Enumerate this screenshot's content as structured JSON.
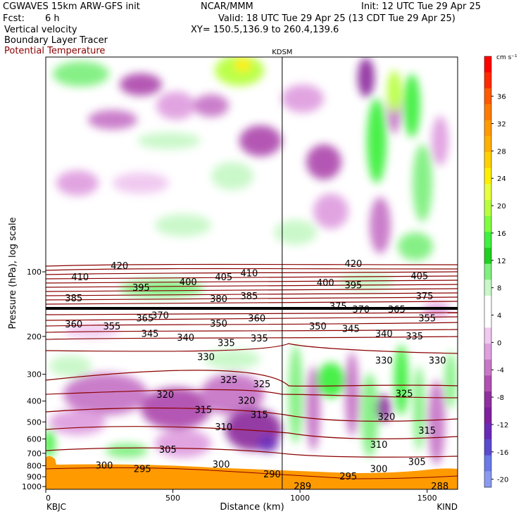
{
  "header": {
    "model": "CGWAVES 15km ARW-GFS init",
    "org": "NCAR/MMM",
    "init": "Init: 12 UTC Tue 29 Apr 25",
    "fcst_label": "Fcst:",
    "fcst_value": "6 h",
    "valid": "Valid: 18 UTC Tue 29 Apr 25 (13 CDT Tue 29 Apr 25)",
    "field1": "Vertical velocity",
    "xy": "XY= 150.5,136.9 to 260.4,139.6",
    "field2": "Boundary Layer Tracer",
    "field3": "Potential Temperature",
    "field3_color": "#8b0000"
  },
  "chart_data": {
    "type": "heatmap",
    "ylabel": "Pressure (hPa), log scale",
    "xlabel": "Distance (km)",
    "y_log": true,
    "ylim": [
      1000,
      10
    ],
    "xlim": [
      0,
      1620
    ],
    "x_ticks": [
      0,
      500,
      1000,
      1500
    ],
    "x_tick_labels": [
      "0",
      "500",
      "1000",
      "1500"
    ],
    "y_ticks": [
      100,
      200,
      300,
      400,
      500,
      600,
      700,
      800,
      900,
      1000
    ],
    "y_tick_labels": [
      "100",
      "200",
      "300",
      "400",
      "500",
      "600",
      "700",
      "800",
      "900",
      "1000"
    ],
    "left_station": "KBJC",
    "right_station": "KIND",
    "mid_station": "KDSM",
    "mid_station_x": 930,
    "colorbar": {
      "unit": "cm s⁻¹",
      "tick_labels": [
        "36",
        "32",
        "28",
        "24",
        "20",
        "16",
        "12",
        "8",
        "4",
        "0",
        "-4",
        "-8",
        "-12",
        "-16",
        "-20"
      ],
      "colors": [
        "#ff0000",
        "#ff2a00",
        "#ff5a00",
        "#ff7a00",
        "#ff9a00",
        "#ffb000",
        "#ffd000",
        "#ffee00",
        "#e8ff40",
        "#b8ff40",
        "#80ff40",
        "#40f040",
        "#20d020",
        "#80f080",
        "#c8f8c8",
        "#ffffff",
        "#ffffff",
        "#f0c8f0",
        "#e0a0e0",
        "#c878c8",
        "#b050b0",
        "#9030a0",
        "#8020a0",
        "#6a2ab8",
        "#5a4ad0",
        "#6a7ae8",
        "#8a9af0"
      ]
    },
    "theta_labels": [
      {
        "text": "420",
        "x": 290,
        "p": 94
      },
      {
        "text": "410",
        "x": 135,
        "p": 106
      },
      {
        "text": "400",
        "x": 560,
        "p": 112
      },
      {
        "text": "405",
        "x": 700,
        "p": 106
      },
      {
        "text": "410",
        "x": 800,
        "p": 102
      },
      {
        "text": "395",
        "x": 375,
        "p": 119
      },
      {
        "text": "385",
        "x": 110,
        "p": 133
      },
      {
        "text": "380",
        "x": 680,
        "p": 134
      },
      {
        "text": "385",
        "x": 800,
        "p": 130
      },
      {
        "text": "365",
        "x": 390,
        "p": 165
      },
      {
        "text": "370",
        "x": 450,
        "p": 160
      },
      {
        "text": "360",
        "x": 110,
        "p": 176
      },
      {
        "text": "355",
        "x": 260,
        "p": 180
      },
      {
        "text": "350",
        "x": 680,
        "p": 175
      },
      {
        "text": "360",
        "x": 830,
        "p": 165
      },
      {
        "text": "345",
        "x": 410,
        "p": 195
      },
      {
        "text": "340",
        "x": 550,
        "p": 203
      },
      {
        "text": "335",
        "x": 710,
        "p": 215
      },
      {
        "text": "335",
        "x": 840,
        "p": 205
      },
      {
        "text": "330",
        "x": 630,
        "p": 250
      },
      {
        "text": "325",
        "x": 720,
        "p": 320
      },
      {
        "text": "325",
        "x": 850,
        "p": 335
      },
      {
        "text": "320",
        "x": 470,
        "p": 375
      },
      {
        "text": "320",
        "x": 790,
        "p": 400
      },
      {
        "text": "315",
        "x": 620,
        "p": 440
      },
      {
        "text": "315",
        "x": 840,
        "p": 465
      },
      {
        "text": "310",
        "x": 700,
        "p": 530
      },
      {
        "text": "305",
        "x": 480,
        "p": 675
      },
      {
        "text": "300",
        "x": 230,
        "p": 800
      },
      {
        "text": "300",
        "x": 690,
        "p": 790
      },
      {
        "text": "295",
        "x": 380,
        "p": 830
      },
      {
        "text": "290",
        "x": 890,
        "p": 880
      },
      {
        "text": "420",
        "x": 1210,
        "p": 92
      },
      {
        "text": "405",
        "x": 1470,
        "p": 105
      },
      {
        "text": "400",
        "x": 1100,
        "p": 113
      },
      {
        "text": "395",
        "x": 1210,
        "p": 116
      },
      {
        "text": "375",
        "x": 1150,
        "p": 145
      },
      {
        "text": "370",
        "x": 1240,
        "p": 150
      },
      {
        "text": "365",
        "x": 1380,
        "p": 150
      },
      {
        "text": "375",
        "x": 1490,
        "p": 130
      },
      {
        "text": "355",
        "x": 1500,
        "p": 165
      },
      {
        "text": "350",
        "x": 1070,
        "p": 180
      },
      {
        "text": "345",
        "x": 1200,
        "p": 185
      },
      {
        "text": "340",
        "x": 1330,
        "p": 195
      },
      {
        "text": "335",
        "x": 1450,
        "p": 200
      },
      {
        "text": "330",
        "x": 1330,
        "p": 260
      },
      {
        "text": "330",
        "x": 1540,
        "p": 260
      },
      {
        "text": "325",
        "x": 1410,
        "p": 370
      },
      {
        "text": "320",
        "x": 1340,
        "p": 475
      },
      {
        "text": "315",
        "x": 1500,
        "p": 550
      },
      {
        "text": "310",
        "x": 1310,
        "p": 640
      },
      {
        "text": "305",
        "x": 1460,
        "p": 770
      },
      {
        "text": "300",
        "x": 1310,
        "p": 830
      },
      {
        "text": "295",
        "x": 1190,
        "p": 900
      },
      {
        "text": "289",
        "x": 1010,
        "p": 1000
      },
      {
        "text": "288",
        "x": 1550,
        "p": 1000
      }
    ],
    "tropopause_p": 160
  }
}
